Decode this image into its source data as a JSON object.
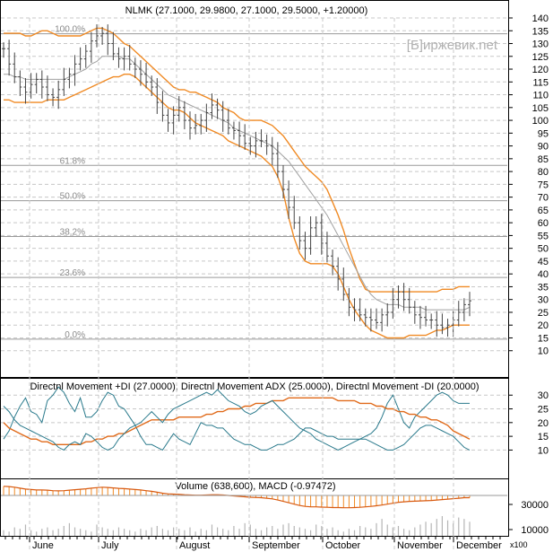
{
  "chart_data": [
    {
      "type": "ohlc",
      "title": "NLMK (27.1000, 29.9800, 27.1000, 29.5000, +1.20000)",
      "watermark": "[Б]иржевик.net",
      "ylim": [
        5,
        140
      ],
      "y_ticks": [
        140,
        135,
        130,
        125,
        120,
        115,
        110,
        105,
        100,
        95,
        90,
        85,
        80,
        75,
        70,
        65,
        60,
        55,
        50,
        45,
        40,
        35,
        30,
        25,
        20,
        15,
        10
      ],
      "fib_levels": [
        {
          "label": "100.0%",
          "value": 133.8
        },
        {
          "label": "61.8%",
          "value": 82.4
        },
        {
          "label": "50.0%",
          "value": 68.6
        },
        {
          "label": "38.2%",
          "value": 54.6
        },
        {
          "label": "23.6%",
          "value": 38.6
        },
        {
          "label": "0.0%",
          "value": 14.5
        }
      ],
      "x_labels": [
        "June",
        "July",
        "August",
        "September",
        "October",
        "November",
        "December"
      ],
      "series": [
        {
          "name": "Close",
          "values": [
            128,
            122,
            117,
            113,
            111,
            114,
            116,
            113,
            110,
            109,
            112,
            116,
            118,
            122,
            124,
            127,
            131,
            133,
            134,
            130,
            126,
            124,
            125,
            122,
            120,
            118,
            115,
            113,
            107,
            102,
            99,
            102,
            105,
            100,
            97,
            98,
            100,
            103,
            106,
            104,
            100,
            97,
            96,
            94,
            91,
            90,
            92,
            92,
            90,
            87,
            80,
            73,
            66,
            60,
            53,
            50,
            58,
            60,
            52,
            47,
            43,
            38,
            32,
            27,
            26,
            24,
            23,
            22,
            21,
            24,
            25,
            30,
            33,
            30,
            27,
            24,
            23,
            22,
            22,
            20,
            19,
            20,
            22,
            25,
            28,
            29.5
          ]
        },
        {
          "name": "Upper band",
          "values": [
            134,
            134,
            134,
            134,
            133,
            133,
            134,
            135,
            135,
            134,
            133,
            133,
            133,
            133,
            133,
            134,
            135,
            136,
            136,
            135,
            134,
            132,
            130,
            129,
            127,
            125,
            123,
            121,
            119,
            117,
            115,
            113,
            112,
            112,
            111,
            111,
            110,
            109,
            108,
            107,
            105,
            104,
            103,
            101,
            100,
            100,
            100,
            100,
            99,
            98,
            96,
            94,
            91,
            88,
            85,
            82,
            80,
            78,
            76,
            73,
            68,
            63,
            57,
            50,
            44,
            38,
            34,
            33,
            33,
            33,
            33,
            33,
            33,
            33,
            33,
            33,
            33,
            33,
            33,
            33,
            34,
            34,
            34,
            35,
            35,
            35
          ]
        },
        {
          "name": "Middle",
          "values": [
            118,
            118,
            117,
            117,
            116,
            116,
            116,
            116,
            116,
            116,
            116,
            116,
            117,
            118,
            119,
            120,
            122,
            123,
            125,
            125,
            125,
            125,
            124,
            124,
            122,
            120,
            118,
            116,
            114,
            112,
            110,
            109,
            108,
            107,
            106,
            105,
            104,
            103,
            102,
            101,
            100,
            99,
            97,
            96,
            95,
            94,
            93,
            92,
            91,
            90,
            88,
            86,
            84,
            81,
            78,
            75,
            72,
            69,
            66,
            63,
            59,
            55,
            51,
            47,
            43,
            39,
            35,
            32,
            30,
            29,
            28,
            28,
            28,
            27,
            27,
            27,
            27,
            26,
            26,
            26,
            26,
            26,
            26,
            26,
            26,
            27
          ]
        },
        {
          "name": "Lower band",
          "values": [
            108,
            108,
            107,
            107,
            107,
            107,
            107,
            107,
            108,
            108,
            108,
            108,
            109,
            110,
            111,
            112,
            113,
            114,
            115,
            116,
            117,
            117,
            118,
            118,
            117,
            115,
            113,
            111,
            109,
            107,
            105,
            104,
            104,
            103,
            101,
            99,
            98,
            97,
            96,
            95,
            94,
            92,
            91,
            90,
            89,
            88,
            87,
            86,
            84,
            82,
            78,
            72,
            62,
            54,
            48,
            45,
            44,
            44,
            44,
            44,
            43,
            40,
            35,
            30,
            26,
            23,
            20,
            18,
            17,
            16,
            15,
            15,
            15,
            15,
            16,
            16,
            16,
            16,
            17,
            18,
            18,
            19,
            20,
            20,
            20,
            20
          ]
        }
      ]
    },
    {
      "type": "line",
      "title": "Directnl Movement +DI (27.0000), Directnl Movement ADX (25.0000), Directnl Movement -DI (20.0000)",
      "ylim": [
        0,
        34
      ],
      "y_ticks": [
        30,
        25,
        20,
        15,
        10
      ],
      "series": [
        {
          "name": "+DI",
          "color": "#2a7a8c",
          "values": [
            14,
            17,
            22,
            26,
            29,
            24,
            23,
            20,
            28,
            30,
            33,
            31,
            27,
            24,
            29,
            22,
            22,
            24,
            28,
            31,
            30,
            26,
            25,
            22,
            19,
            15,
            12,
            12,
            11,
            10,
            13,
            16,
            14,
            13,
            12,
            16,
            20,
            19,
            19,
            18,
            18,
            16,
            14,
            13,
            12,
            12,
            11,
            10,
            10,
            11,
            12,
            12,
            13,
            14,
            16,
            18,
            18,
            17,
            16,
            15,
            15,
            14,
            14,
            14,
            14,
            14,
            15,
            16,
            18,
            22,
            27,
            30,
            25,
            20,
            18,
            22,
            24,
            26,
            28,
            30,
            31,
            30,
            28,
            27,
            27,
            27
          ]
        },
        {
          "name": "ADX",
          "color": "#e06a1a",
          "values": [
            20,
            18,
            17,
            16,
            15,
            14,
            14,
            13,
            13,
            12,
            12,
            12,
            12,
            12,
            12,
            13,
            13,
            14,
            14,
            15,
            15,
            16,
            16,
            17,
            18,
            19,
            20,
            21,
            21,
            21,
            21,
            21,
            22,
            22,
            22,
            22,
            22,
            23,
            23,
            24,
            24,
            25,
            25,
            25,
            26,
            26,
            27,
            27,
            27,
            28,
            28,
            28,
            29,
            29,
            29,
            29,
            29,
            29,
            29,
            29,
            29,
            28,
            28,
            28,
            28,
            27,
            27,
            27,
            26,
            26,
            25,
            25,
            24,
            24,
            23,
            23,
            22,
            22,
            21,
            21,
            20,
            19,
            17,
            16,
            15,
            14
          ]
        },
        {
          "name": "-DI",
          "color": "#2a7a8c",
          "values": [
            26,
            24,
            21,
            19,
            18,
            17,
            16,
            15,
            14,
            13,
            11,
            10,
            12,
            13,
            12,
            16,
            15,
            13,
            11,
            10,
            11,
            14,
            16,
            18,
            19,
            20,
            22,
            24,
            22,
            20,
            23,
            25,
            26,
            27,
            28,
            29,
            30,
            31,
            30,
            32,
            30,
            28,
            27,
            26,
            24,
            23,
            24,
            26,
            27,
            28,
            26,
            24,
            22,
            20,
            18,
            17,
            16,
            14,
            13,
            12,
            11,
            10,
            11,
            12,
            13,
            14,
            14,
            13,
            12,
            11,
            10,
            10,
            11,
            12,
            14,
            16,
            18,
            19,
            19,
            18,
            17,
            16,
            15,
            13,
            11,
            10
          ]
        }
      ]
    },
    {
      "type": "bar",
      "title": "Volume (638,600), MACD (-0.97472)",
      "y_ticks": [
        "30000",
        "10000"
      ],
      "unit_label": "x100",
      "series": [
        {
          "name": "Volume",
          "values": [
            4,
            3,
            6,
            5,
            8,
            4,
            3,
            5,
            6,
            4,
            5,
            7,
            9,
            6,
            5,
            4,
            3,
            8,
            6,
            5,
            4,
            6,
            5,
            4,
            3,
            5,
            4,
            6,
            7,
            5,
            4,
            6,
            5,
            4,
            6,
            3,
            5,
            4,
            8,
            6,
            5,
            4,
            7,
            5,
            9,
            8,
            5,
            4,
            6,
            7,
            5,
            8,
            9,
            7,
            6,
            5,
            4,
            8,
            7,
            5,
            6,
            4,
            3,
            5,
            4,
            7,
            6,
            5,
            9,
            12,
            8,
            6,
            7,
            5,
            4,
            6,
            8,
            10,
            9,
            12,
            14,
            11,
            9,
            13,
            12,
            10
          ]
        },
        {
          "name": "MACD",
          "color": "#e06a1a",
          "values": [
            4.0,
            3.9,
            3.6,
            3.2,
            2.8,
            2.6,
            2.4,
            2.4,
            2.3,
            2.1,
            2.0,
            2.1,
            2.3,
            2.5,
            2.7,
            2.9,
            3.2,
            3.4,
            3.6,
            3.5,
            3.3,
            3.1,
            3.0,
            2.8,
            2.6,
            2.4,
            2.1,
            1.8,
            1.4,
            1.0,
            0.7,
            0.6,
            0.5,
            0.3,
            0.2,
            0.1,
            0.1,
            0.2,
            0.3,
            0.3,
            0.2,
            0.0,
            -0.2,
            -0.4,
            -0.6,
            -0.8,
            -0.9,
            -1.0,
            -1.2,
            -1.5,
            -2.0,
            -2.6,
            -3.2,
            -3.8,
            -4.4,
            -4.8,
            -5.0,
            -5.0,
            -5.1,
            -5.2,
            -5.3,
            -5.3,
            -5.4,
            -5.4,
            -5.3,
            -5.2,
            -5.0,
            -4.8,
            -4.5,
            -4.2,
            -3.8,
            -3.4,
            -3.0,
            -2.8,
            -2.6,
            -2.5,
            -2.4,
            -2.3,
            -2.2,
            -2.0,
            -1.8,
            -1.6,
            -1.4,
            -1.2,
            -1.0,
            -0.97
          ]
        }
      ]
    }
  ]
}
